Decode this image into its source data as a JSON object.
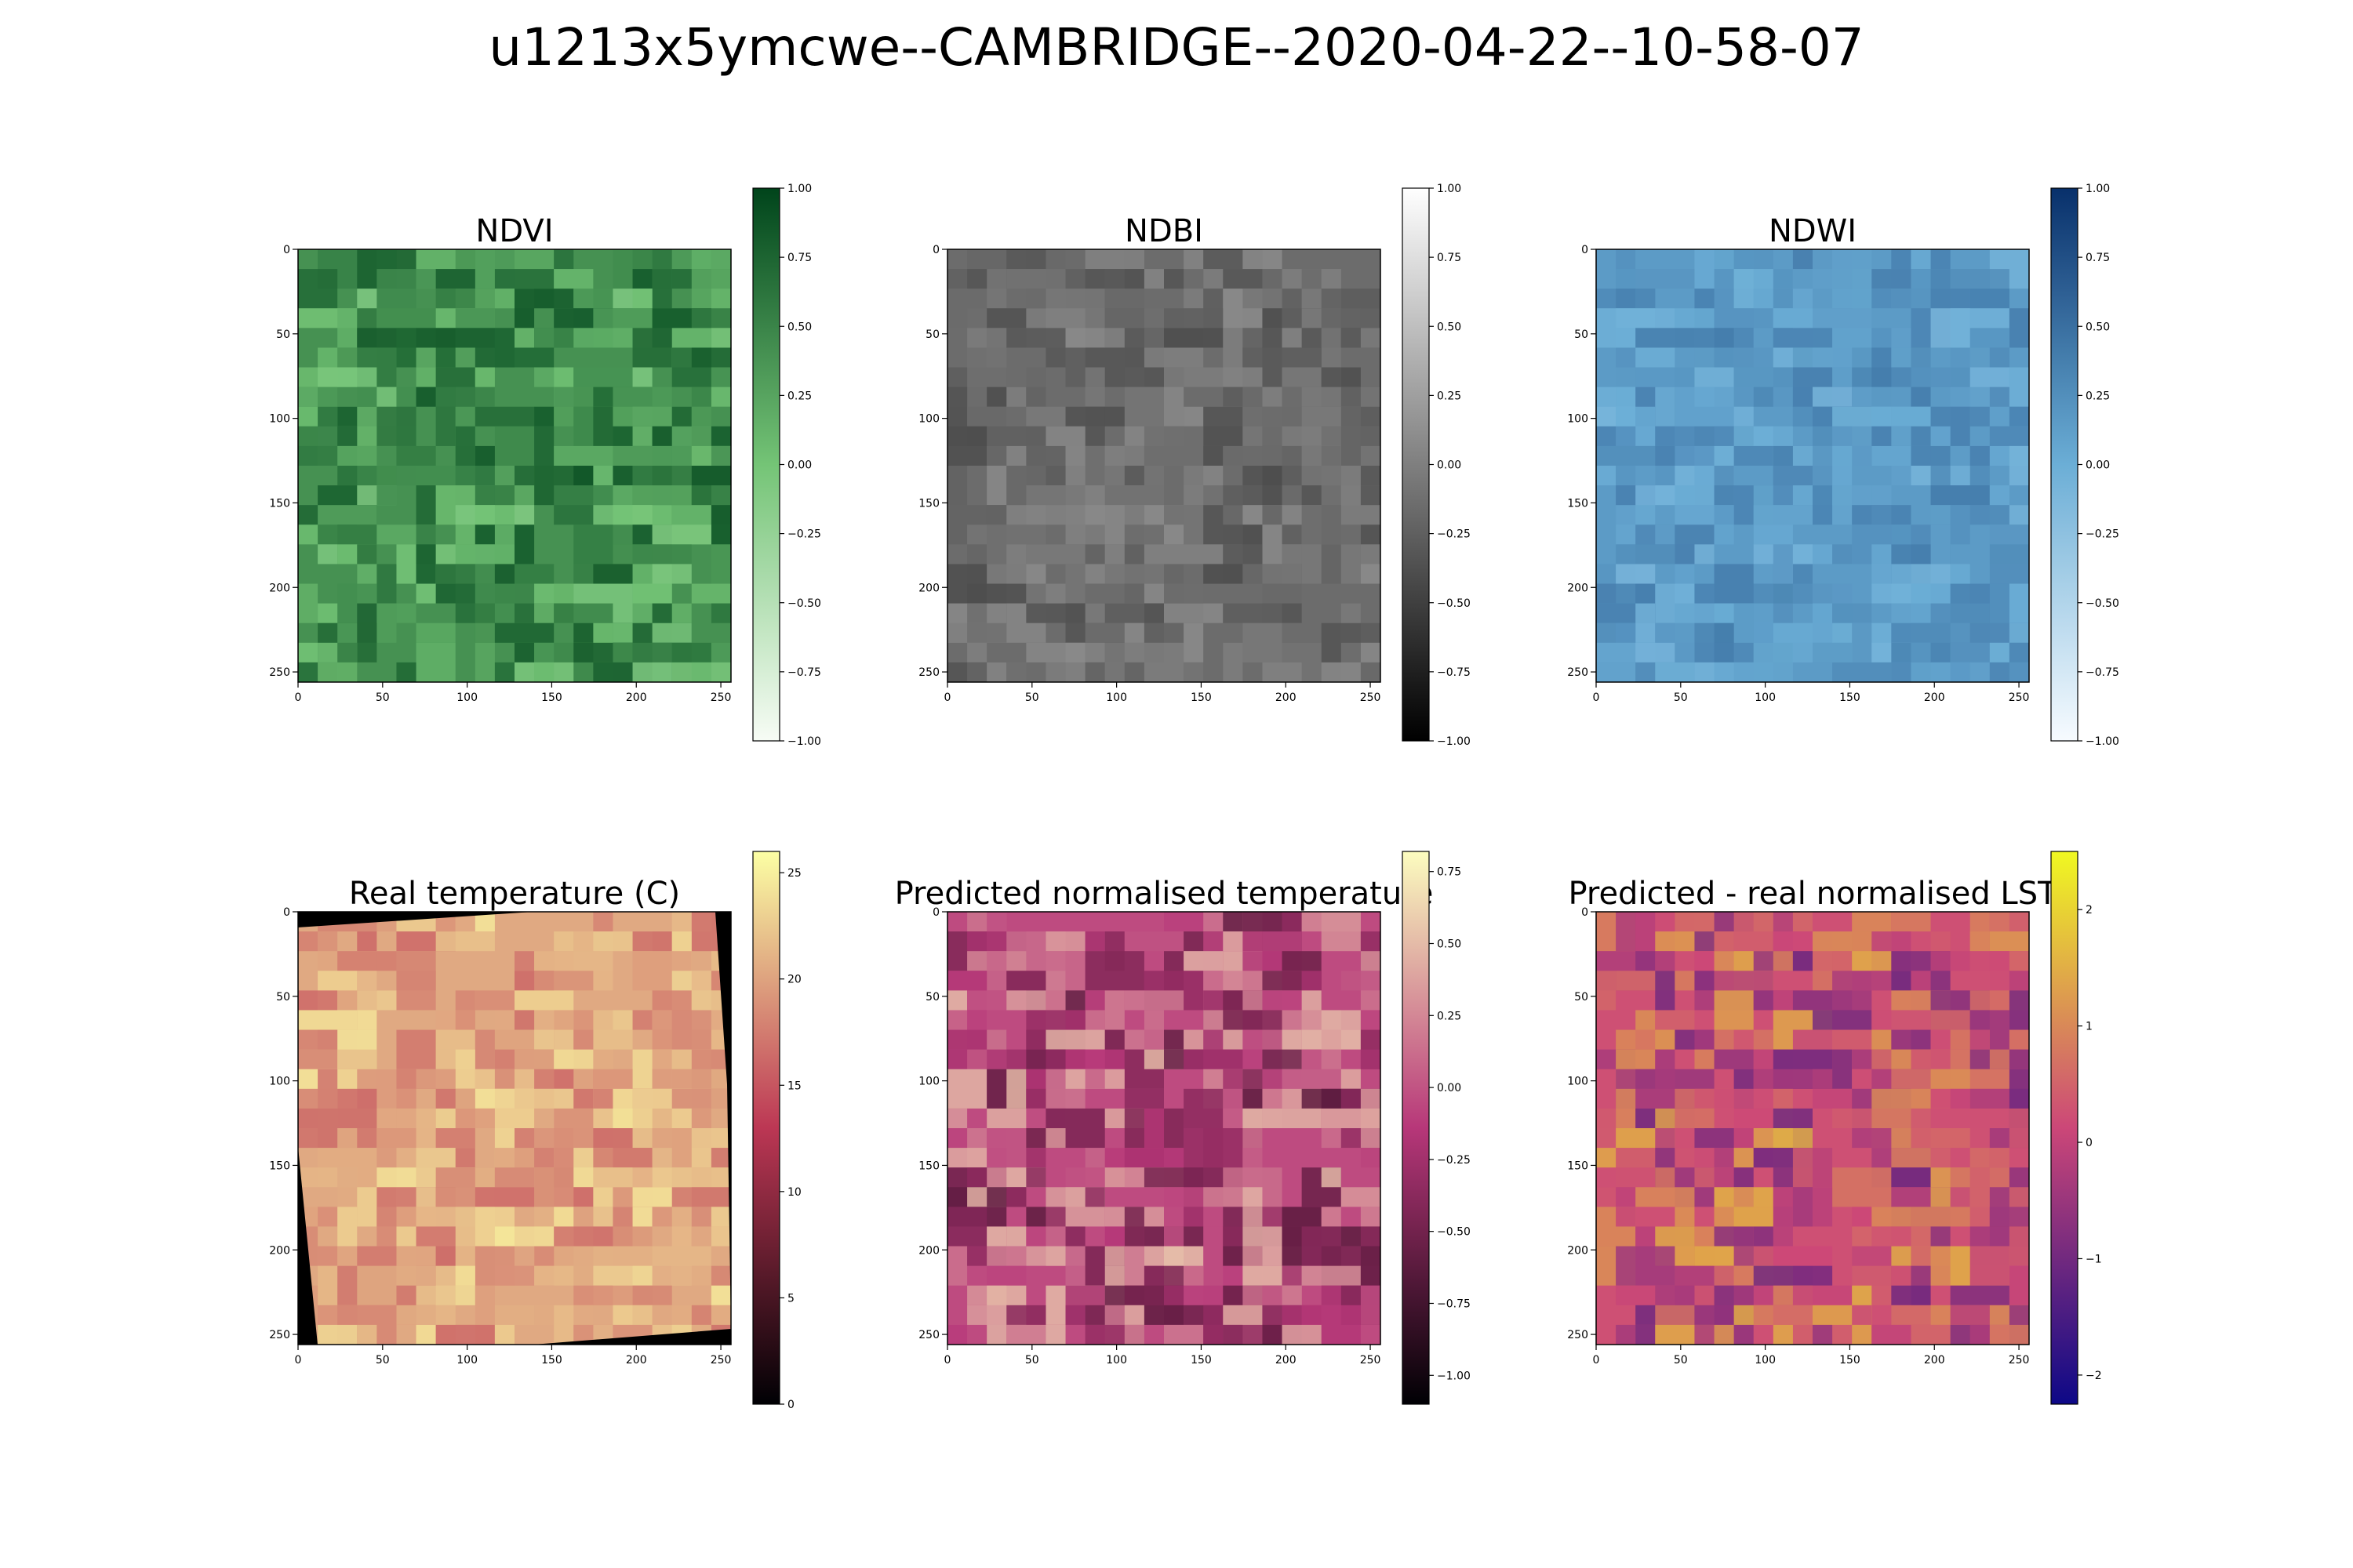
{
  "title": "u1213x5ymcwe--CAMBRIDGE--2020-04-22--10-58-07",
  "chart_data": [
    {
      "type": "heatmap",
      "title": "NDVI",
      "colormap": "Greens",
      "xlim": [
        0,
        256
      ],
      "ylim": [
        256,
        0
      ],
      "xticks": [
        0,
        50,
        100,
        150,
        200,
        250
      ],
      "yticks": [
        0,
        50,
        100,
        150,
        200,
        250
      ],
      "colorbar": {
        "range": [
          -1.0,
          1.0
        ],
        "ticks": [
          "1.00",
          "0.75",
          "0.50",
          "0.25",
          "0.00",
          "−0.25",
          "−0.50",
          "−0.75",
          "−1.00"
        ]
      },
      "colors": {
        "low": "#f7fcf5",
        "mid": "#74c476",
        "high": "#00441b"
      }
    },
    {
      "type": "heatmap",
      "title": "NDBI",
      "colormap": "Greys_r",
      "xlim": [
        0,
        256
      ],
      "ylim": [
        256,
        0
      ],
      "xticks": [
        0,
        50,
        100,
        150,
        200,
        250
      ],
      "yticks": [
        0,
        50,
        100,
        150,
        200,
        250
      ],
      "colorbar": {
        "range": [
          -1.0,
          1.0
        ],
        "ticks": [
          "1.00",
          "0.75",
          "0.50",
          "0.25",
          "0.00",
          "−0.25",
          "−0.50",
          "−0.75",
          "−1.00"
        ]
      },
      "colors": {
        "low": "#000000",
        "mid": "#7f7f7f",
        "high": "#ffffff"
      }
    },
    {
      "type": "heatmap",
      "title": "NDWI",
      "colormap": "Blues",
      "xlim": [
        0,
        256
      ],
      "ylim": [
        256,
        0
      ],
      "xticks": [
        0,
        50,
        100,
        150,
        200,
        250
      ],
      "yticks": [
        0,
        50,
        100,
        150,
        200,
        250
      ],
      "colorbar": {
        "range": [
          -1.0,
          1.0
        ],
        "ticks": [
          "1.00",
          "0.75",
          "0.50",
          "0.25",
          "0.00",
          "−0.25",
          "−0.50",
          "−0.75",
          "−1.00"
        ]
      },
      "colors": {
        "low": "#f7fbff",
        "mid": "#6baed6",
        "high": "#08306b"
      }
    },
    {
      "type": "heatmap",
      "title": "Real temperature (C)",
      "colormap": "inferno",
      "xlim": [
        0,
        256
      ],
      "ylim": [
        256,
        0
      ],
      "xticks": [
        0,
        50,
        100,
        150,
        200,
        250
      ],
      "yticks": [
        0,
        50,
        100,
        150,
        200,
        250
      ],
      "colorbar": {
        "range": [
          0,
          26
        ],
        "ticks": [
          "25",
          "20",
          "15",
          "10",
          "5",
          "0"
        ]
      },
      "colors": {
        "low": "#000004",
        "mid": "#bc3754",
        "high": "#fcffa4"
      }
    },
    {
      "type": "heatmap",
      "title": "Predicted normalised temperature",
      "colormap": "magma",
      "xlim": [
        0,
        256
      ],
      "ylim": [
        256,
        0
      ],
      "xticks": [
        0,
        50,
        100,
        150,
        200,
        250
      ],
      "yticks": [
        0,
        50,
        100,
        150,
        200,
        250
      ],
      "colorbar": {
        "range": [
          -1.1,
          0.82
        ],
        "ticks": [
          "0.75",
          "0.50",
          "0.25",
          "0.00",
          "−0.25",
          "−0.50",
          "−0.75",
          "−1.00"
        ]
      },
      "colors": {
        "low": "#000004",
        "mid": "#b73779",
        "high": "#fcfdbf"
      }
    },
    {
      "type": "heatmap",
      "title": "Predicted - real normalised LST",
      "colormap": "plasma",
      "xlim": [
        0,
        256
      ],
      "ylim": [
        256,
        0
      ],
      "xticks": [
        0,
        50,
        100,
        150,
        200,
        250
      ],
      "yticks": [
        0,
        50,
        100,
        150,
        200,
        250
      ],
      "colorbar": {
        "range": [
          -2.25,
          2.5
        ],
        "ticks": [
          "2",
          "1",
          "0",
          "−1",
          "−2"
        ]
      },
      "colors": {
        "low": "#0d0887",
        "mid": "#cc4778",
        "high": "#f0f921"
      }
    }
  ]
}
